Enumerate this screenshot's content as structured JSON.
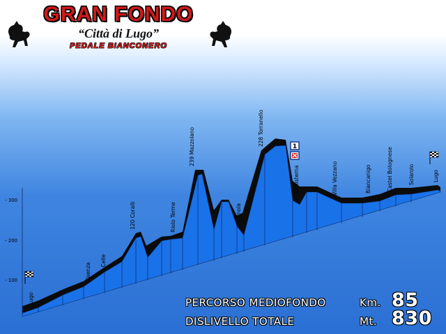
{
  "header": {
    "title": "GRAN FONDO",
    "subtitle": "“Città di Lugo”",
    "tagline": "PEDALE BIANCONERO"
  },
  "axis": {
    "ticks": [
      {
        "label": "- 300",
        "value": 300
      },
      {
        "label": "- 200",
        "value": 200
      },
      {
        "label": "- 100",
        "value": 100
      }
    ]
  },
  "places": [
    {
      "label": "Lugo",
      "elevation": 15
    },
    {
      "label": "Faenza",
      "elevation": 35
    },
    {
      "label": "Celle",
      "elevation": 60
    },
    {
      "label": "120 Coralli",
      "elevation": 120
    },
    {
      "label": "Riolo Terme",
      "elevation": 100
    },
    {
      "label": "239 Mazzolano",
      "elevation": 239
    },
    {
      "label": "Imola",
      "elevation": 50
    },
    {
      "label": "228 Torranello",
      "elevation": 228
    },
    {
      "label": "Gallisterna",
      "elevation": 120
    },
    {
      "label": "Villa Vezzano",
      "elevation": 90
    },
    {
      "label": "Biancanigo",
      "elevation": 60
    },
    {
      "label": "Castel Bolognese",
      "elevation": 50
    },
    {
      "label": "Solarolo",
      "elevation": 25
    },
    {
      "label": "Lugo",
      "elevation": 15
    }
  ],
  "markers": {
    "ristoro_number": "1"
  },
  "stats": [
    {
      "label": "PERCORSO MEDIOFONDO",
      "unit": "Km.",
      "value": "85"
    },
    {
      "label": "DISLIVELLO TOTALE",
      "unit": "Mt.",
      "value": "830"
    }
  ],
  "colors": {
    "profile_fill": "#1a72e8",
    "profile_top": "#111111",
    "title_red": "#d11a1a"
  }
}
